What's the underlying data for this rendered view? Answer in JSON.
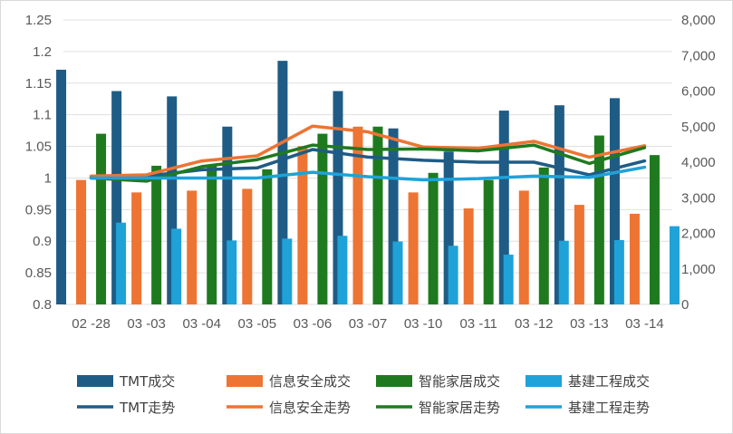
{
  "chart_data": {
    "type": "bar",
    "categories": [
      "02 -28",
      "03 -03",
      "03 -04",
      "03 -05",
      "03 -06",
      "03 -07",
      "03 -10",
      "03 -11",
      "03 -12",
      "03 -13",
      "03 -14"
    ],
    "y_left": {
      "min": 0.8,
      "max": 1.25,
      "step": 0.05,
      "ticks": [
        "0.8",
        "0.85",
        "0.9",
        "0.95",
        "1",
        "1.05",
        "1.1",
        "1.15",
        "1.2",
        "1.25"
      ]
    },
    "y_right": {
      "min": 0,
      "max": 8000,
      "step": 1000,
      "ticks": [
        "0",
        "1,000",
        "2,000",
        "3,000",
        "4,000",
        "5,000",
        "6,000",
        "7,000",
        "8,000"
      ]
    },
    "bar_series": [
      {
        "name": "TMT成交",
        "color": "#1f5c85",
        "axis": "right",
        "values": [
          6600,
          6000,
          5850,
          5000,
          6850,
          6000,
          4950,
          4300,
          5450,
          5600,
          5800
        ]
      },
      {
        "name": "信息安全成交",
        "color": "#ed7433",
        "axis": "right",
        "values": [
          3500,
          3150,
          3200,
          3250,
          4450,
          5000,
          3150,
          2700,
          3200,
          2800,
          2550
        ]
      },
      {
        "name": "智能家居成交",
        "color": "#1f7a1f",
        "axis": "right",
        "values": [
          4800,
          3900,
          3900,
          3800,
          4800,
          5000,
          3700,
          3500,
          3850,
          4750,
          4200
        ]
      },
      {
        "name": "基建工程成交",
        "color": "#1fa2d8",
        "axis": "right",
        "values": [
          2300,
          2130,
          1800,
          1850,
          1930,
          1770,
          1650,
          1400,
          1790,
          1810,
          2200
        ]
      }
    ],
    "line_series": [
      {
        "name": "TMT走势",
        "color": "#1f5c85",
        "axis": "left",
        "values": [
          1.001,
          1.003,
          1.013,
          1.016,
          1.045,
          1.033,
          1.028,
          1.025,
          1.025,
          1.005,
          1.027
        ]
      },
      {
        "name": "信息安全走势",
        "color": "#ed7433",
        "axis": "left",
        "values": [
          1.003,
          1.005,
          1.027,
          1.035,
          1.082,
          1.073,
          1.049,
          1.047,
          1.058,
          1.033,
          1.051
        ]
      },
      {
        "name": "智能家居走势",
        "color": "#1f7a1f",
        "axis": "left",
        "values": [
          1.0,
          0.995,
          1.018,
          1.029,
          1.052,
          1.045,
          1.046,
          1.043,
          1.052,
          1.023,
          1.048
        ]
      },
      {
        "name": "基建工程走势",
        "color": "#1fa2d8",
        "axis": "left",
        "values": [
          1.0,
          1.0,
          1.0,
          1.0,
          1.009,
          1.002,
          0.997,
          0.999,
          1.003,
          1.001,
          1.017
        ]
      }
    ],
    "grid": true,
    "legend_position": "bottom",
    "legend_order": [
      "TMT成交",
      "信息安全成交",
      "智能家居成交",
      "基建工程成交",
      "TMT走势",
      "信息安全走势",
      "智能家居走势",
      "基建工程走势"
    ]
  }
}
